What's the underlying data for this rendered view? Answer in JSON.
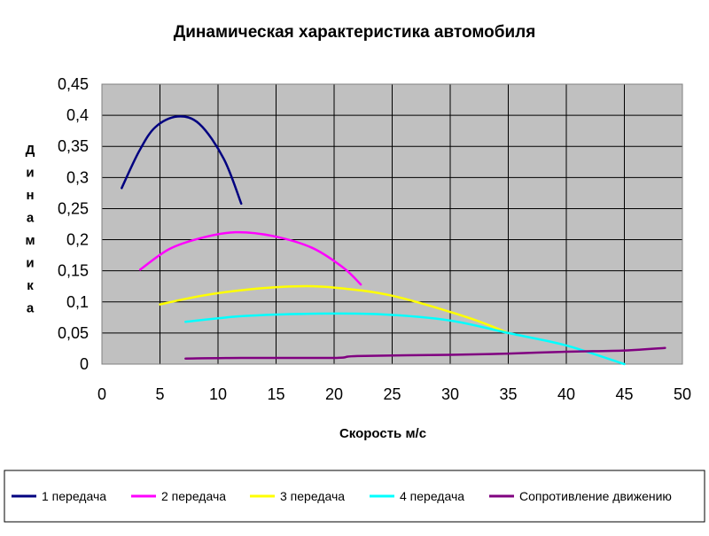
{
  "chart_data": {
    "type": "line",
    "title": "Динамическая характеристика автомобиля",
    "xlabel": "Скорость м/с",
    "ylabel": "Динамика",
    "xlim": [
      0,
      50
    ],
    "ylim": [
      0,
      0.45
    ],
    "x_ticks": [
      "0",
      "5",
      "10",
      "15",
      "20",
      "25",
      "30",
      "35",
      "40",
      "45",
      "50"
    ],
    "y_ticks": [
      "0",
      "0,05",
      "0,1",
      "0,15",
      "0,2",
      "0,25",
      "0,3",
      "0,35",
      "0,4",
      "0,45"
    ],
    "grid": true,
    "plot_background": "#c0c0c0",
    "legend_position": "bottom",
    "series": [
      {
        "name": "1 передача",
        "color": "#000080",
        "points": [
          [
            1.7,
            0.283
          ],
          [
            3.2,
            0.342
          ],
          [
            4.6,
            0.381
          ],
          [
            6.5,
            0.398
          ],
          [
            8.4,
            0.386
          ],
          [
            10.5,
            0.33
          ],
          [
            12.0,
            0.258
          ]
        ]
      },
      {
        "name": "2 передача",
        "color": "#ff00ff",
        "points": [
          [
            3.3,
            0.152
          ],
          [
            5.8,
            0.185
          ],
          [
            8.6,
            0.203
          ],
          [
            11.5,
            0.212
          ],
          [
            14.7,
            0.206
          ],
          [
            18.1,
            0.187
          ],
          [
            20.8,
            0.155
          ],
          [
            22.3,
            0.128
          ]
        ]
      },
      {
        "name": "3 передача",
        "color": "#ffff00",
        "points": [
          [
            5.0,
            0.096
          ],
          [
            8.6,
            0.11
          ],
          [
            12.6,
            0.12
          ],
          [
            16.6,
            0.125
          ],
          [
            20.0,
            0.123
          ],
          [
            25.0,
            0.11
          ],
          [
            31.5,
            0.075
          ],
          [
            35.0,
            0.05
          ]
        ]
      },
      {
        "name": "4 передача",
        "color": "#00ffff",
        "points": [
          [
            7.2,
            0.068
          ],
          [
            12.0,
            0.077
          ],
          [
            18.0,
            0.081
          ],
          [
            24.0,
            0.08
          ],
          [
            30.0,
            0.07
          ],
          [
            35.0,
            0.05
          ],
          [
            40.0,
            0.03
          ],
          [
            45.0,
            0.0
          ]
        ]
      },
      {
        "name": "Сопротивление движению",
        "color": "#800080",
        "points": [
          [
            7.2,
            0.009
          ],
          [
            12.0,
            0.01
          ],
          [
            20.0,
            0.01
          ],
          [
            22.0,
            0.013
          ],
          [
            30.0,
            0.015
          ],
          [
            35.0,
            0.017
          ],
          [
            40.0,
            0.02
          ],
          [
            45.0,
            0.022
          ],
          [
            48.5,
            0.026
          ]
        ]
      }
    ]
  }
}
